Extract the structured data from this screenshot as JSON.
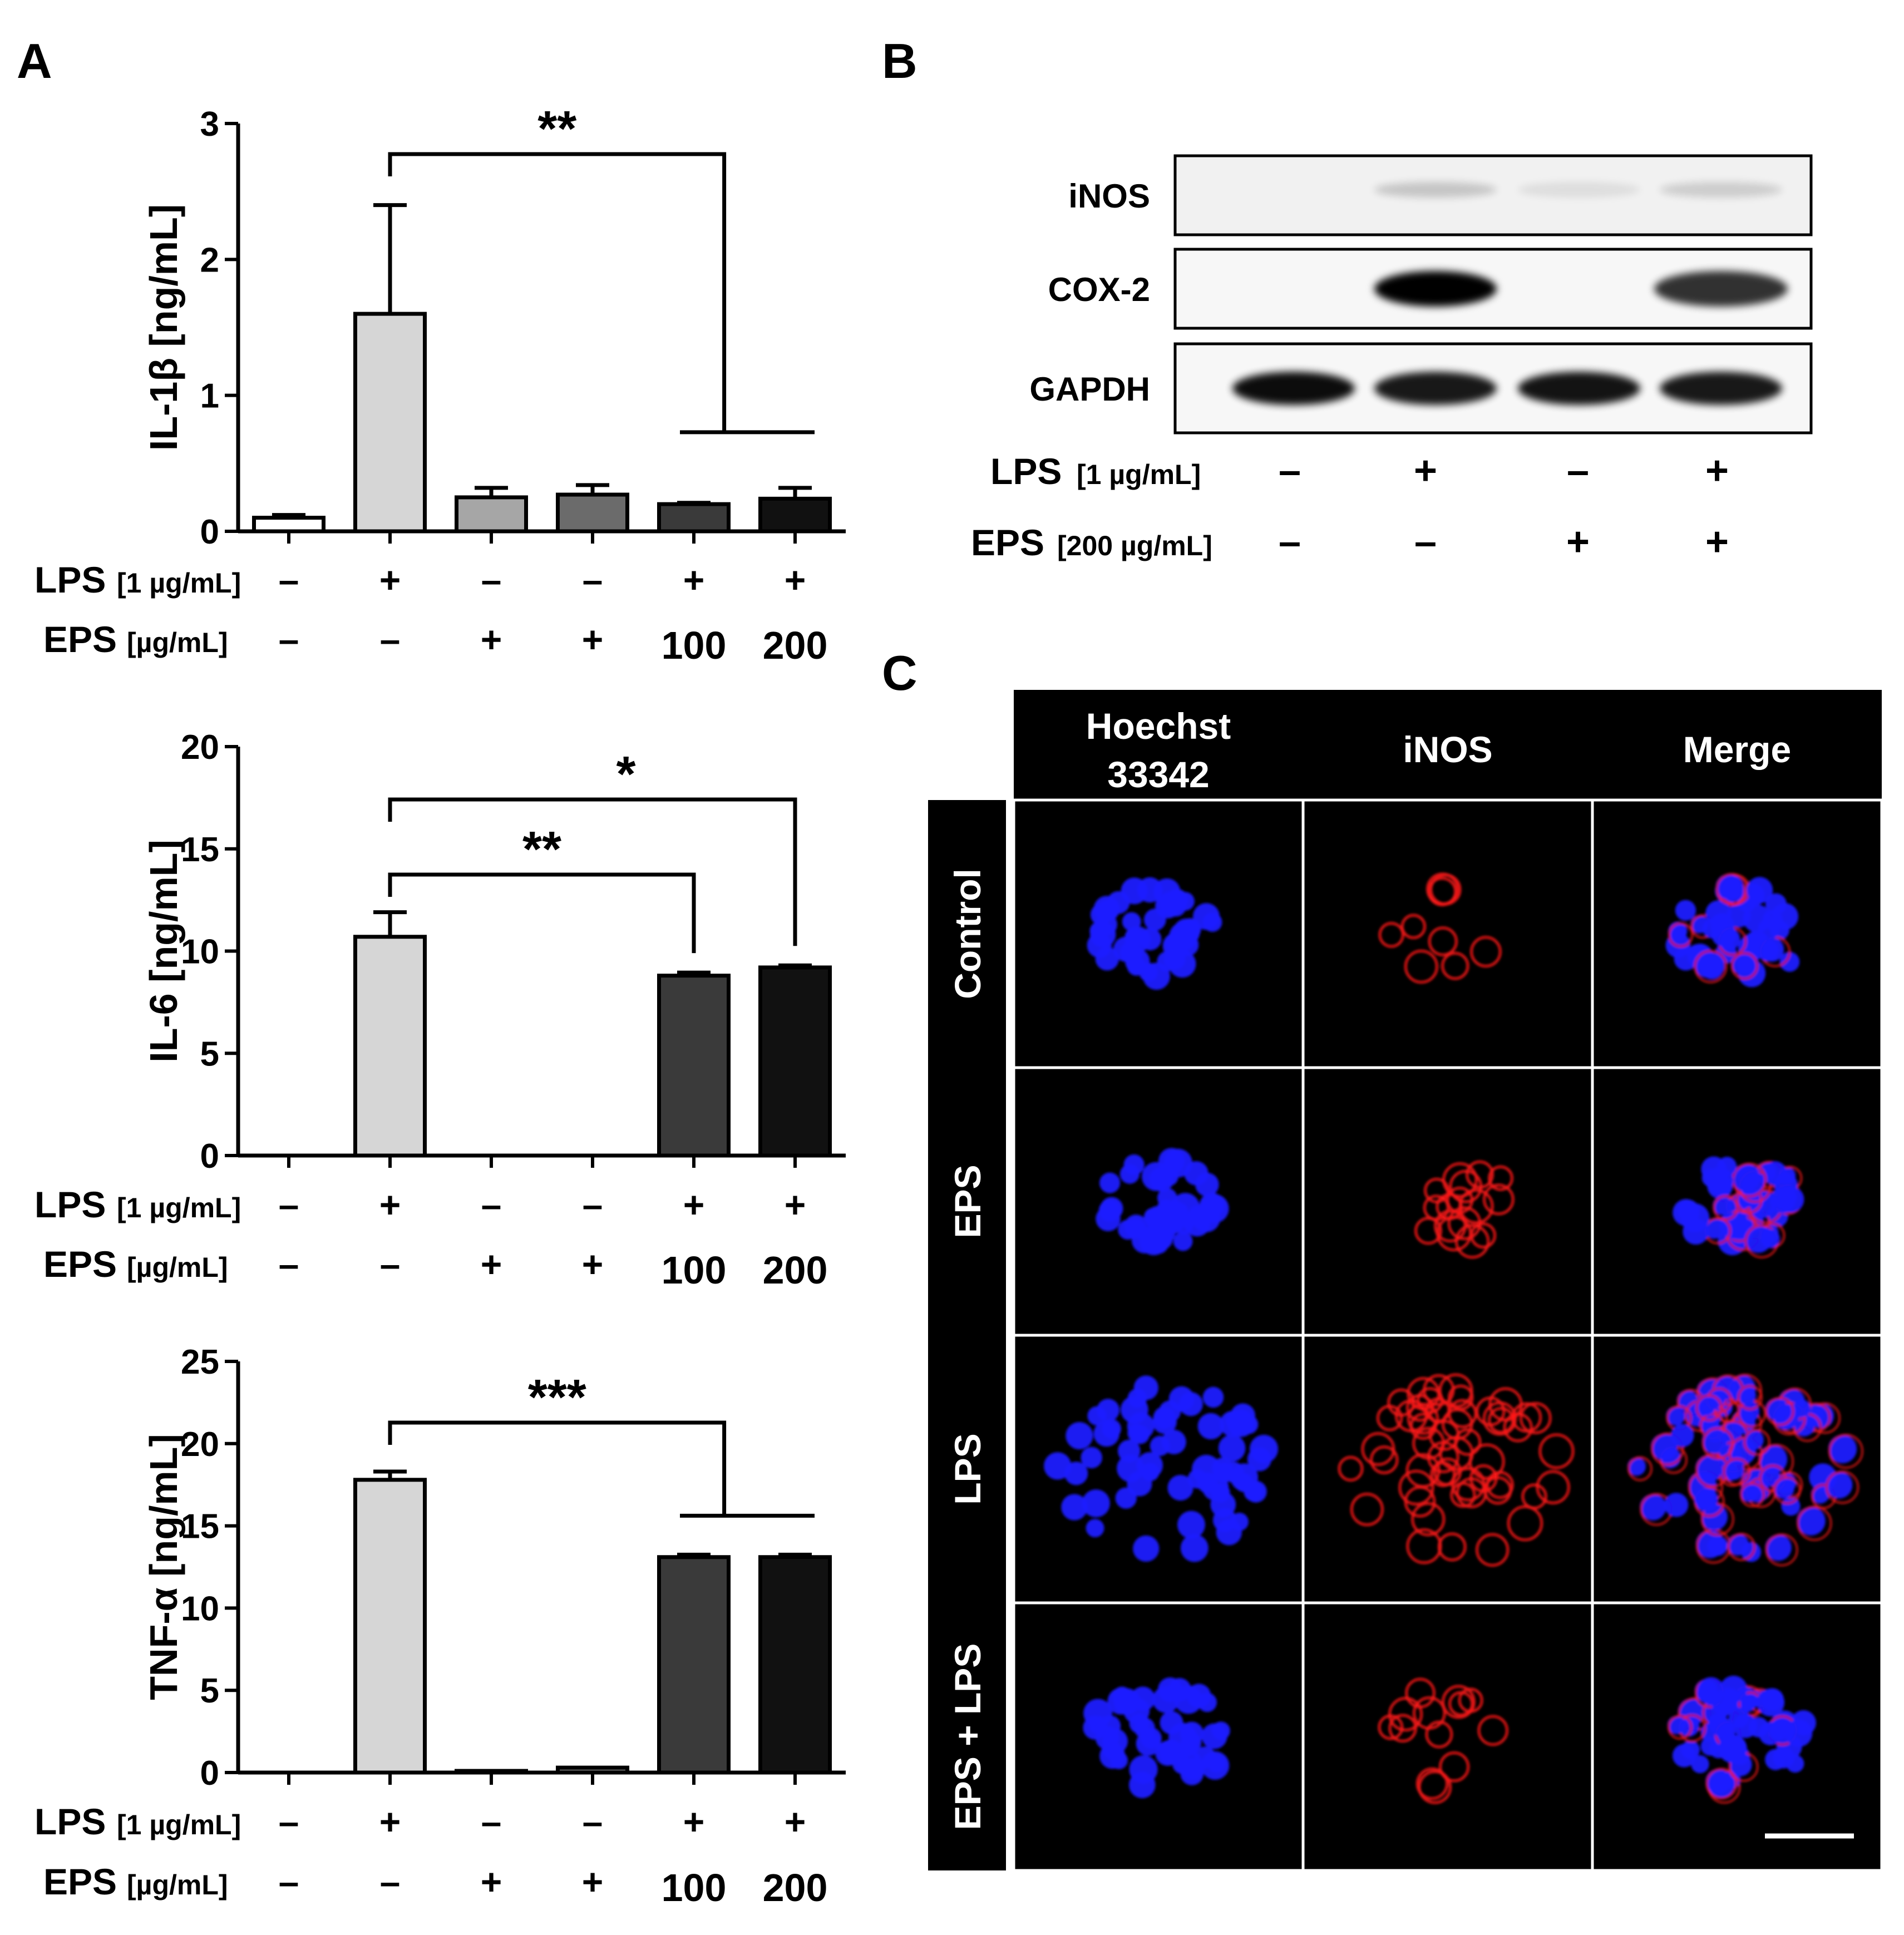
{
  "panel_labels": {
    "a": "A",
    "b": "B",
    "c": "C"
  },
  "treatment_labels": {
    "lps": "LPS",
    "lps_conc": "[1 µg/mL]",
    "eps": "EPS",
    "eps_conc": "[µg/mL]"
  },
  "lps_signs": [
    "–",
    "+",
    "–",
    "–",
    "+",
    "+"
  ],
  "eps_signs": [
    "–",
    "–",
    "+",
    "+",
    "100",
    "200"
  ],
  "chart_data": [
    {
      "type": "bar",
      "ylabel": "IL-1β  [ng/mL]",
      "ylim": [
        0,
        3
      ],
      "yticks": [
        0,
        1,
        2,
        3
      ],
      "values": [
        0.1,
        1.6,
        0.25,
        0.27,
        0.2,
        0.24
      ],
      "errors": [
        0.02,
        0.8,
        0.07,
        0.07,
        0.01,
        0.08
      ],
      "colors": [
        "#ffffff",
        "#d6d6d6",
        "#a6a6a6",
        "#6b6b6b",
        "#3a3a3a",
        "#111111"
      ],
      "significance": [
        {
          "label": "**",
          "from": 1,
          "to": [
            4,
            5
          ],
          "grouped": true
        }
      ]
    },
    {
      "type": "bar",
      "ylabel": "IL-6 [ng/mL]",
      "ylim": [
        0,
        20
      ],
      "yticks": [
        0,
        5,
        10,
        15,
        20
      ],
      "values": [
        0,
        10.7,
        0,
        0,
        8.8,
        9.2
      ],
      "errors": [
        0,
        1.2,
        0,
        0,
        0.15,
        0.1
      ],
      "colors": [
        "#ffffff",
        "#d6d6d6",
        "#a6a6a6",
        "#6b6b6b",
        "#3a3a3a",
        "#111111"
      ],
      "significance": [
        {
          "label": "**",
          "from": 1,
          "to": [
            4
          ],
          "grouped": false
        },
        {
          "label": "*",
          "from": 1,
          "to": [
            5
          ],
          "grouped": false
        }
      ]
    },
    {
      "type": "bar",
      "ylabel": "TNF-α  [ng/mL]",
      "ylim": [
        0,
        25
      ],
      "yticks": [
        0,
        5,
        10,
        15,
        20,
        25
      ],
      "values": [
        0,
        17.8,
        0.1,
        0.3,
        13.1,
        13.1
      ],
      "errors": [
        0,
        0.5,
        0,
        0,
        0.15,
        0.15
      ],
      "colors": [
        "#ffffff",
        "#d6d6d6",
        "#a6a6a6",
        "#6b6b6b",
        "#3a3a3a",
        "#111111"
      ],
      "significance": [
        {
          "label": "***",
          "from": 1,
          "to": [
            4,
            5
          ],
          "grouped": true
        }
      ]
    }
  ],
  "western_blot": {
    "bands": [
      "iNOS",
      "COX-2",
      "GAPDH"
    ],
    "lps_label": "LPS",
    "lps_conc": "[1 µg/mL]",
    "eps_label": "EPS",
    "eps_conc": "[200 µg/mL]",
    "lps_signs": [
      "–",
      "+",
      "–",
      "+"
    ],
    "eps_signs": [
      "–",
      "–",
      "+",
      "+"
    ],
    "intensity": {
      "iNOS": [
        0.03,
        0.18,
        0.08,
        0.15
      ],
      "COX-2": [
        0.02,
        1.0,
        0.02,
        0.8
      ],
      "GAPDH": [
        0.95,
        0.9,
        0.92,
        0.9
      ]
    }
  },
  "microscopy": {
    "columns": [
      "Hoechst 33342",
      "iNOS",
      "Merge"
    ],
    "rows": [
      "Control",
      "EPS",
      "LPS",
      "EPS + LPS"
    ],
    "cluster_size": [
      0.5,
      0.45,
      1.0,
      0.55
    ],
    "inos_level": [
      0.35,
      0.4,
      1.0,
      0.45
    ],
    "colors": {
      "nucleus": "#1a1aff",
      "inos": "#ff1a1a",
      "background": "#000000"
    }
  }
}
